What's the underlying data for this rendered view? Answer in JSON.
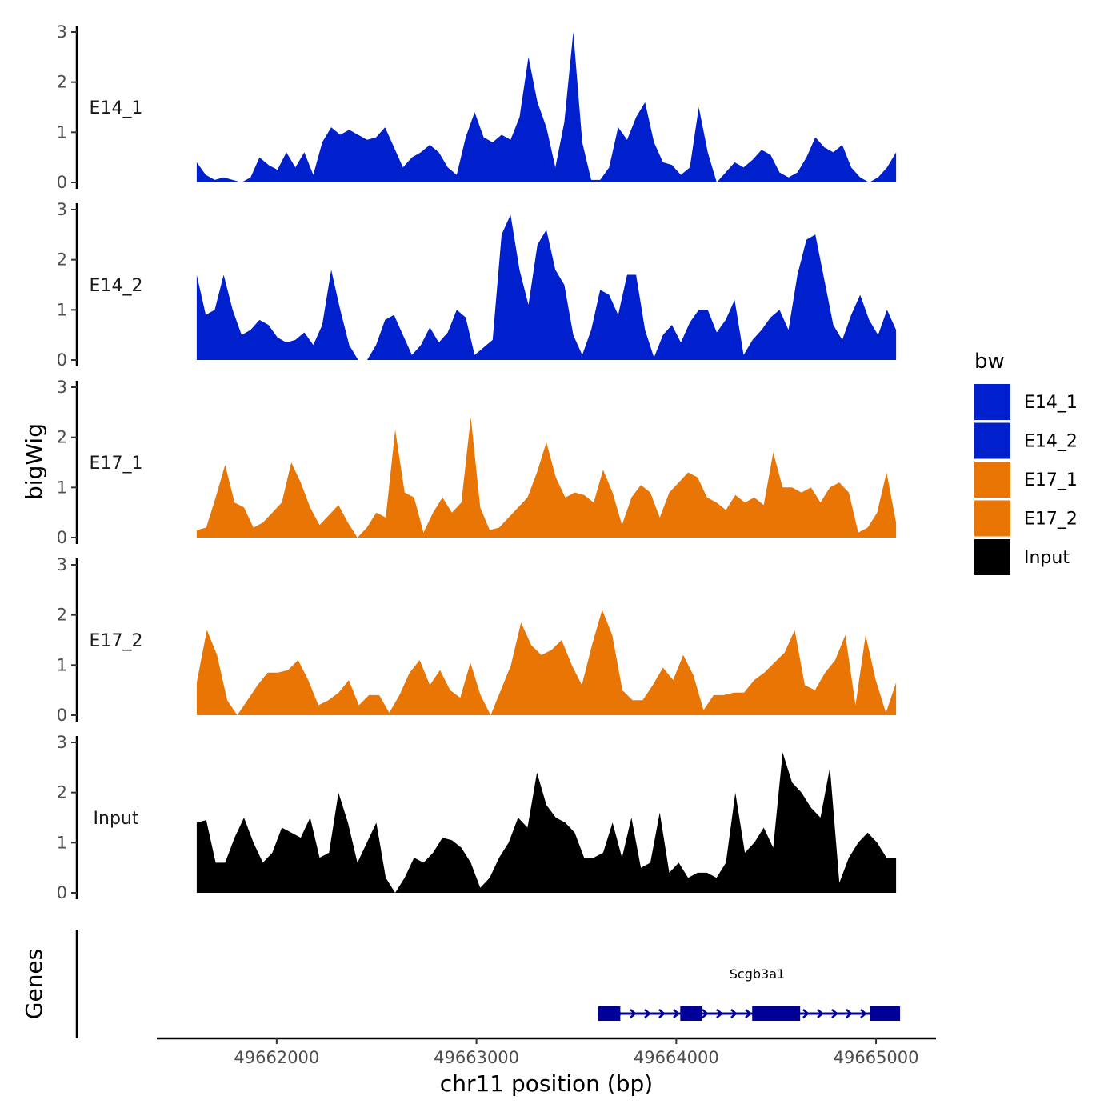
{
  "chart_data": {
    "type": "area",
    "chromosome": "chr11",
    "x_range": [
      49661600,
      49665100
    ],
    "xlim": [
      49661400,
      49665300
    ],
    "ylim": [
      0,
      3
    ],
    "y_ticks": [
      0,
      1,
      2,
      3
    ],
    "x_ticks": [
      49662000,
      49663000,
      49664000,
      49665000
    ],
    "x_tick_labels": [
      "49662000",
      "49663000",
      "49664000",
      "49665000"
    ],
    "ylabel": "bigWig",
    "xlabel": "chr11 position (bp)",
    "genes_panel_label": "Genes",
    "legend": {
      "title": "bw",
      "position": "right",
      "entries": [
        {
          "name": "E14_1",
          "color": "#0020CD"
        },
        {
          "name": "E14_2",
          "color": "#0020CD"
        },
        {
          "name": "E17_1",
          "color": "#E87504"
        },
        {
          "name": "E17_2",
          "color": "#E87504"
        },
        {
          "name": "Input",
          "color": "#000000"
        }
      ]
    },
    "tracks": [
      {
        "name": "E14_1",
        "color": "#0020CD",
        "values": [
          0.4,
          0.15,
          0.05,
          0.1,
          0.05,
          0,
          0.1,
          0.5,
          0.35,
          0.25,
          0.6,
          0.3,
          0.6,
          0.15,
          0.8,
          1.1,
          0.95,
          1.05,
          0.95,
          0.85,
          0.9,
          1.1,
          0.7,
          0.3,
          0.5,
          0.6,
          0.75,
          0.6,
          0.3,
          0.15,
          0.9,
          1.4,
          0.9,
          0.8,
          0.95,
          0.85,
          1.3,
          2.5,
          1.6,
          1.1,
          0.3,
          1.2,
          3.0,
          0.8,
          0.05,
          0.05,
          0.3,
          1.1,
          0.85,
          1.3,
          1.6,
          0.8,
          0.4,
          0.35,
          0.15,
          0.3,
          1.5,
          0.6,
          0,
          0.2,
          0.4,
          0.3,
          0.45,
          0.65,
          0.55,
          0.2,
          0.1,
          0.2,
          0.5,
          0.9,
          0.7,
          0.6,
          0.75,
          0.3,
          0.1,
          0,
          0.1,
          0.3,
          0.6
        ]
      },
      {
        "name": "E14_2",
        "color": "#0020CD",
        "values": [
          1.7,
          0.9,
          1.0,
          1.7,
          1.0,
          0.5,
          0.6,
          0.8,
          0.7,
          0.45,
          0.35,
          0.4,
          0.55,
          0.3,
          0.7,
          1.8,
          1.0,
          0.3,
          0,
          0,
          0.3,
          0.8,
          0.9,
          0.5,
          0.1,
          0.3,
          0.65,
          0.35,
          0.55,
          1.0,
          0.85,
          0.1,
          0.25,
          0.4,
          2.5,
          2.9,
          1.8,
          1.1,
          2.3,
          2.6,
          1.8,
          1.5,
          0.5,
          0.1,
          0.6,
          1.4,
          1.3,
          0.9,
          1.7,
          1.7,
          0.6,
          0.05,
          0.5,
          0.7,
          0.35,
          0.75,
          1.0,
          1.0,
          0.55,
          0.8,
          1.2,
          0.1,
          0.4,
          0.6,
          0.85,
          1.0,
          0.6,
          1.7,
          2.4,
          2.5,
          1.6,
          0.7,
          0.4,
          0.9,
          1.3,
          0.8,
          0.5,
          1.0,
          0.6
        ]
      },
      {
        "name": "E17_1",
        "color": "#E87504",
        "values": [
          0.15,
          0.2,
          0.8,
          1.45,
          0.7,
          0.6,
          0.2,
          0.3,
          0.5,
          0.7,
          1.5,
          1.1,
          0.6,
          0.25,
          0.45,
          0.65,
          0.3,
          0,
          0.2,
          0.5,
          0.4,
          2.15,
          0.9,
          0.8,
          0.1,
          0.5,
          0.8,
          0.5,
          0.7,
          2.4,
          0.6,
          0.15,
          0.2,
          0.4,
          0.6,
          0.8,
          1.3,
          1.9,
          1.2,
          0.8,
          0.9,
          0.85,
          0.7,
          1.35,
          0.9,
          0.25,
          0.8,
          1.05,
          0.9,
          0.4,
          0.9,
          1.1,
          1.3,
          1.2,
          0.8,
          0.7,
          0.55,
          0.85,
          0.7,
          0.8,
          0.65,
          1.7,
          1.0,
          1.0,
          0.9,
          1.0,
          0.7,
          1.0,
          1.1,
          0.9,
          0.1,
          0.2,
          0.5,
          1.3,
          0.3
        ]
      },
      {
        "name": "E17_2",
        "color": "#E87504",
        "values": [
          0.65,
          1.7,
          1.2,
          0.3,
          0,
          0.3,
          0.6,
          0.85,
          0.85,
          0.9,
          1.1,
          0.7,
          0.2,
          0.3,
          0.45,
          0.7,
          0.2,
          0.4,
          0.4,
          0.05,
          0.4,
          0.85,
          1.1,
          0.6,
          0.9,
          0.5,
          0.35,
          1.05,
          0.4,
          0,
          0.5,
          1.0,
          1.85,
          1.4,
          1.2,
          1.3,
          1.5,
          1.0,
          0.6,
          1.4,
          2.1,
          1.6,
          0.5,
          0.3,
          0.3,
          0.6,
          0.95,
          0.7,
          1.2,
          0.8,
          0.1,
          0.4,
          0.4,
          0.45,
          0.45,
          0.7,
          0.85,
          1.05,
          1.25,
          1.7,
          0.6,
          0.5,
          0.85,
          1.1,
          1.6,
          0.2,
          1.6,
          0.7,
          0.05,
          0.65
        ]
      },
      {
        "name": "Input",
        "color": "#000000",
        "values": [
          1.4,
          1.45,
          0.6,
          0.6,
          1.1,
          1.5,
          1.0,
          0.6,
          0.8,
          1.3,
          1.2,
          1.1,
          1.5,
          0.7,
          0.8,
          2.0,
          1.4,
          0.6,
          1.0,
          1.4,
          0.3,
          0,
          0.3,
          0.7,
          0.6,
          0.8,
          1.1,
          1.05,
          0.9,
          0.6,
          0.1,
          0.3,
          0.7,
          1.0,
          1.5,
          1.3,
          2.4,
          1.75,
          1.5,
          1.4,
          1.2,
          0.7,
          0.7,
          0.8,
          1.4,
          0.7,
          1.5,
          0.5,
          0.6,
          1.6,
          0.4,
          0.6,
          0.3,
          0.4,
          0.4,
          0.3,
          0.6,
          2.0,
          0.8,
          1.0,
          1.3,
          0.9,
          2.8,
          2.2,
          2.0,
          1.7,
          1.5,
          2.5,
          0.2,
          0.7,
          1.0,
          1.2,
          1.0,
          0.7,
          0.7
        ]
      }
    ],
    "gene": {
      "name": "Scgb3a1",
      "strand": "+",
      "start": 49663610,
      "end": 49665120,
      "color": "#000099",
      "exons": [
        [
          49663610,
          49663720
        ],
        [
          49664020,
          49664130
        ],
        [
          49664380,
          49664620
        ],
        [
          49664970,
          49665120
        ]
      ]
    }
  }
}
